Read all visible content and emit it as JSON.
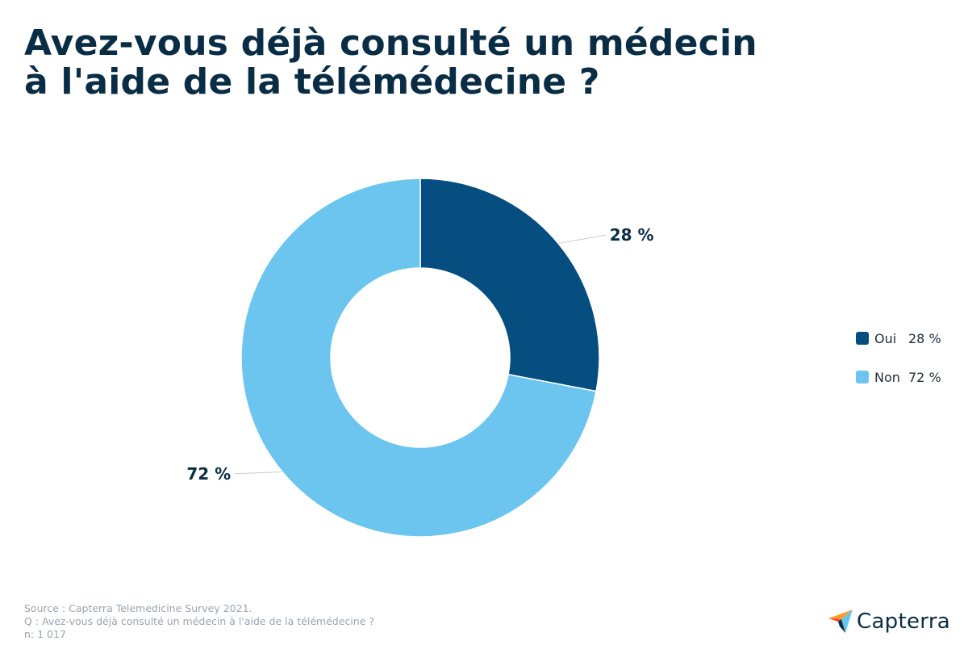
{
  "title_lines": [
    "Avez-vous déjà consulté un médecin",
    "à l'aide de la télémédecine ?"
  ],
  "chart_data": {
    "type": "pie",
    "donut": true,
    "slices": [
      {
        "name": "Oui",
        "value": 28,
        "label": "28 %",
        "legend_value": "28 %",
        "color": "#064d80"
      },
      {
        "name": "Non",
        "value": 72,
        "label": "72 %",
        "legend_value": "72 %",
        "color": "#6bc5ee"
      }
    ],
    "legend_placement": "right"
  },
  "source": {
    "line1": "Source : Capterra Telemedicine Survey 2021.",
    "line2": "Q : Avez-vous déjà consulté un médecin à l'aide de la télémédecine ?",
    "line3": "n: 1 017"
  },
  "logo": {
    "text": "Capterra",
    "colors": {
      "blue": "#0a2d46",
      "orange": "#ff9d28",
      "lightblue": "#68c5ed",
      "red": "#ff3d2e"
    }
  }
}
